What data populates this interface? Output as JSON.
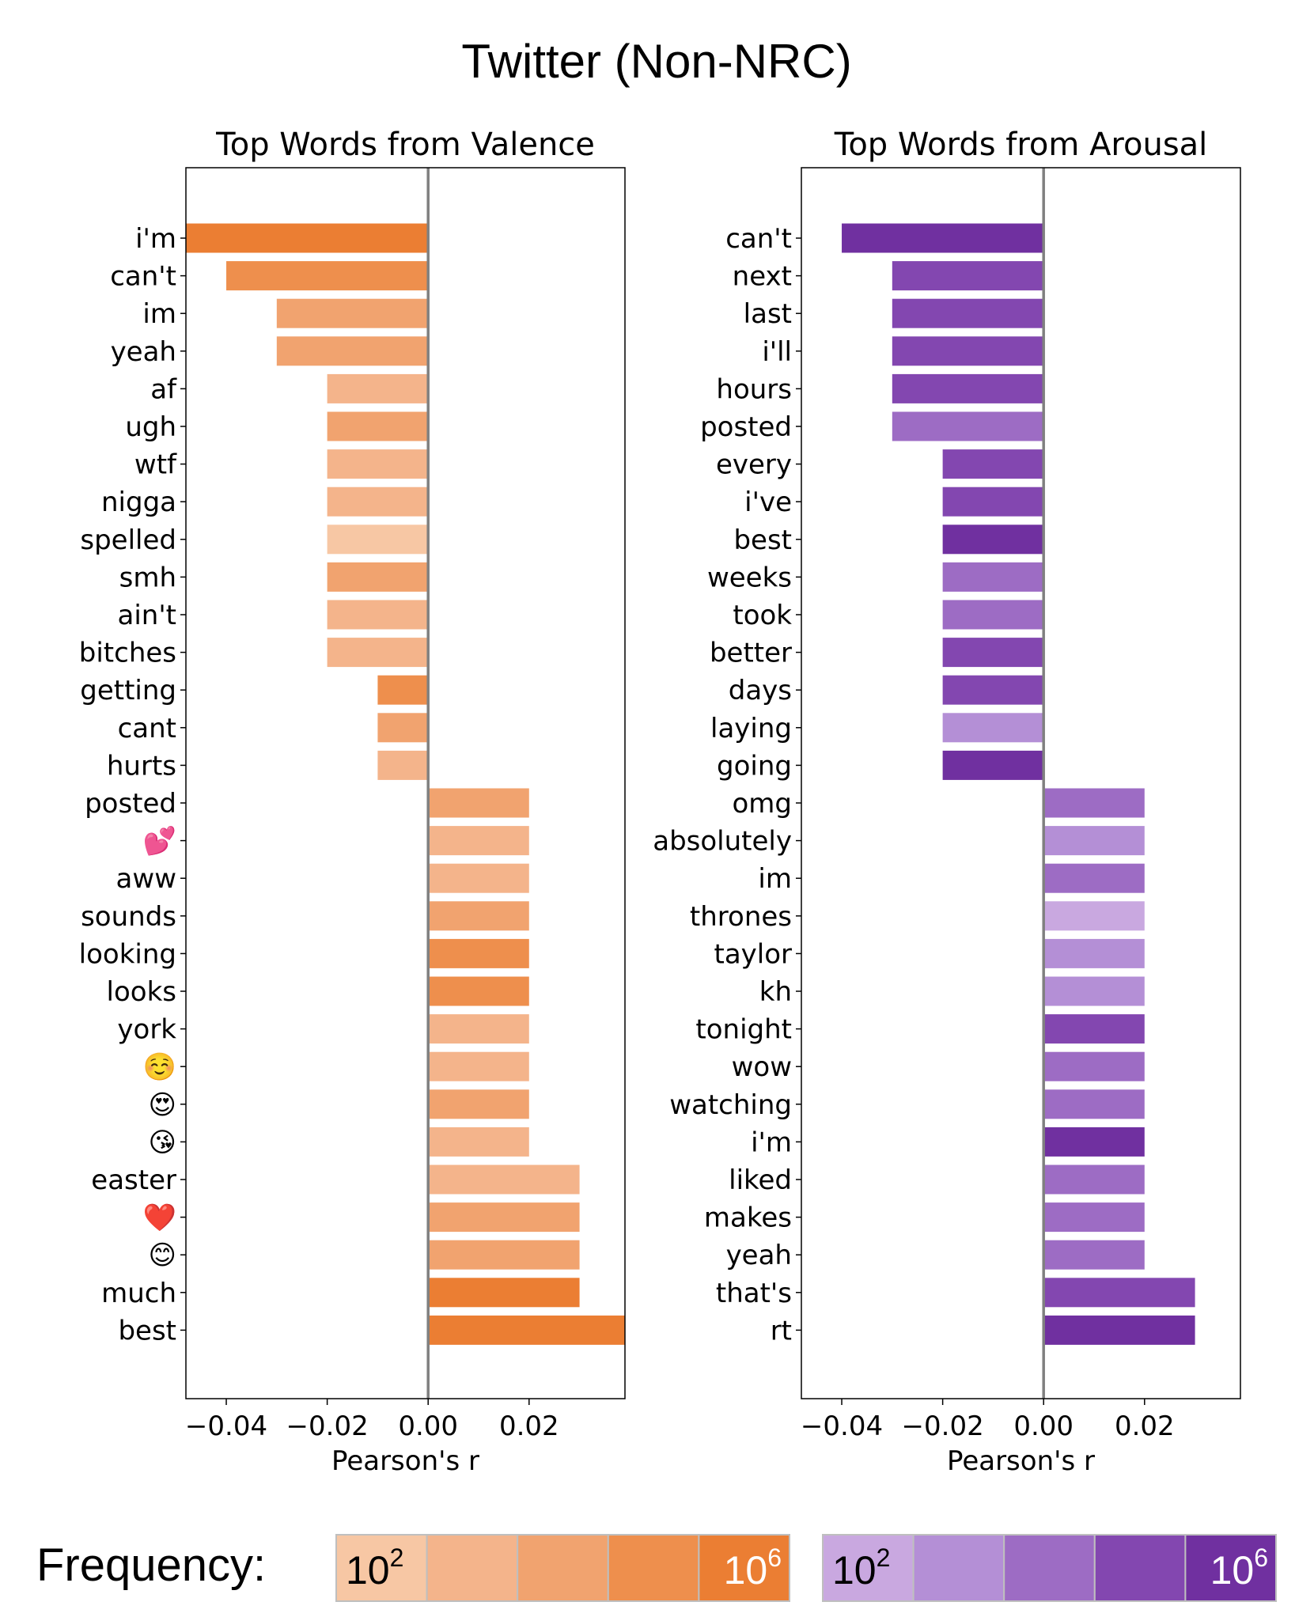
{
  "figure_title": "Twitter (Non-NRC)",
  "frequency_label": "Frequency:",
  "chart_data": [
    {
      "type": "bar",
      "orientation": "horizontal",
      "title": "Top Words from Valence",
      "xlabel": "Pearson's r",
      "xlim": [
        -0.048,
        0.039
      ],
      "xticks": [
        -0.04,
        -0.02,
        0.0,
        0.02
      ],
      "xtick_labels": [
        "−0.04",
        "−0.02",
        "0.00",
        "0.02"
      ],
      "categories": [
        "i'm",
        "can't",
        "im",
        "yeah",
        "af",
        "ugh",
        "wtf",
        "nigga",
        "spelled",
        "smh",
        "ain't",
        "bitches",
        "getting",
        "cant",
        "hurts",
        "posted",
        "💕",
        "aww",
        "sounds",
        "looking",
        "looks",
        "york",
        "☺️",
        "😍",
        "😘",
        "easter",
        "❤️",
        "😊",
        "much",
        "best"
      ],
      "values": [
        -0.048,
        -0.04,
        -0.03,
        -0.03,
        -0.02,
        -0.02,
        -0.02,
        -0.02,
        -0.02,
        -0.02,
        -0.02,
        -0.02,
        -0.01,
        -0.01,
        -0.01,
        0.02,
        0.02,
        0.02,
        0.02,
        0.02,
        0.02,
        0.02,
        0.02,
        0.02,
        0.02,
        0.03,
        0.03,
        0.03,
        0.03,
        0.039
      ],
      "frequency_level": [
        5,
        4,
        3,
        3,
        2,
        3,
        2,
        2,
        1,
        3,
        2,
        2,
        4,
        3,
        2,
        3,
        2,
        2,
        3,
        4,
        4,
        2,
        2,
        3,
        2,
        2,
        3,
        3,
        5,
        5
      ],
      "colors": [
        "#f7c7a4",
        "#f4b48b",
        "#f1a36f",
        "#ee8f4d",
        "#eb7e33"
      ]
    },
    {
      "type": "bar",
      "orientation": "horizontal",
      "title": "Top Words from Arousal",
      "xlabel": "Pearson's r",
      "xlim": [
        -0.048,
        0.039
      ],
      "xticks": [
        -0.04,
        -0.02,
        0.0,
        0.02
      ],
      "xtick_labels": [
        "−0.04",
        "−0.02",
        "0.00",
        "0.02"
      ],
      "categories": [
        "can't",
        "next",
        "last",
        "i'll",
        "hours",
        "posted",
        "every",
        "i've",
        "best",
        "weeks",
        "took",
        "better",
        "days",
        "laying",
        "going",
        "omg",
        "absolutely",
        "im",
        "thrones",
        "taylor",
        "kh",
        "tonight",
        "wow",
        "watching",
        "i'm",
        "liked",
        "makes",
        "yeah",
        "that's",
        "rt"
      ],
      "values": [
        -0.04,
        -0.03,
        -0.03,
        -0.03,
        -0.03,
        -0.03,
        -0.02,
        -0.02,
        -0.02,
        -0.02,
        -0.02,
        -0.02,
        -0.02,
        -0.02,
        -0.02,
        0.02,
        0.02,
        0.02,
        0.02,
        0.02,
        0.02,
        0.02,
        0.02,
        0.02,
        0.02,
        0.02,
        0.02,
        0.02,
        0.03,
        0.03
      ],
      "frequency_level": [
        5,
        4,
        4,
        4,
        4,
        3,
        4,
        4,
        5,
        3,
        3,
        4,
        4,
        2,
        5,
        3,
        2,
        3,
        1,
        2,
        2,
        4,
        3,
        3,
        5,
        3,
        3,
        3,
        4,
        5
      ],
      "colors": [
        "#c9a8e0",
        "#b48fd6",
        "#9d6cc4",
        "#8347b0",
        "#7030a0"
      ]
    }
  ],
  "legends": [
    {
      "name": "orange",
      "low_label": "10",
      "low_exp": "2",
      "high_label": "10",
      "high_exp": "6",
      "colors": [
        "#f7c7a4",
        "#f4b48b",
        "#f1a36f",
        "#ee8f4d",
        "#eb7e33"
      ]
    },
    {
      "name": "purple",
      "low_label": "10",
      "low_exp": "2",
      "high_label": "10",
      "high_exp": "6",
      "colors": [
        "#c9a8e0",
        "#b48fd6",
        "#9d6cc4",
        "#8347b0",
        "#7030a0"
      ]
    }
  ]
}
